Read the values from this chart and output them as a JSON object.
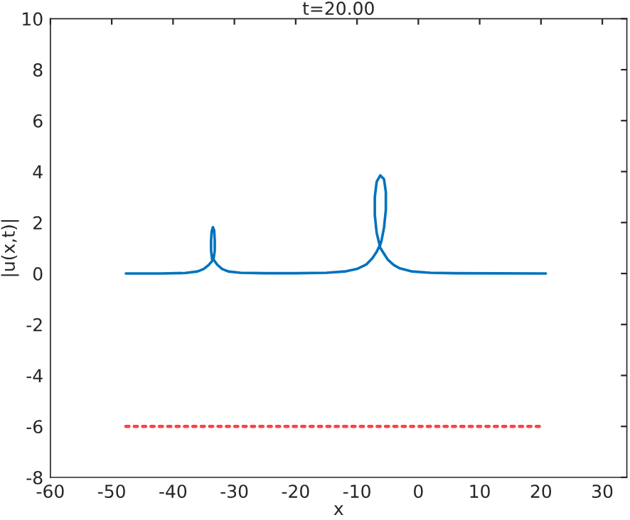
{
  "chart_data": {
    "type": "line",
    "title": "t=20.00",
    "xlabel": "x",
    "ylabel": "|u(x,t)|",
    "xlim": [
      -60,
      34
    ],
    "xticks": [
      -60,
      -50,
      -40,
      -30,
      -20,
      -10,
      0,
      10,
      20,
      30
    ],
    "ylim": [
      -8,
      10
    ],
    "yticks": [
      -8,
      -6,
      -4,
      -2,
      0,
      2,
      4,
      6,
      8,
      10
    ],
    "grid": false,
    "series": [
      {
        "color": "#0072bd",
        "line_style": "solid",
        "x": [
          -47.7,
          -42,
          -38,
          -36,
          -35,
          -34.2,
          -33.6,
          -33.8,
          -33.8,
          -33.7,
          -33.5,
          -33.3,
          -33.2,
          -33.2,
          -33.4,
          -32.8,
          -32,
          -31,
          -29,
          -25,
          -20,
          -15,
          -12,
          -10,
          -8.5,
          -7.5,
          -6.8,
          -6.3,
          -6.8,
          -7.1,
          -7.1,
          -6.8,
          -6.2,
          -5.6,
          -5.3,
          -5.3,
          -5.6,
          -6.0,
          -6.3,
          -5.8,
          -5,
          -4,
          -3,
          -1,
          2,
          6,
          20.8
        ],
        "values": [
          0,
          0,
          0.02,
          0.08,
          0.18,
          0.33,
          0.5,
          0.9,
          1.3,
          1.65,
          1.82,
          1.7,
          1.3,
          0.9,
          0.55,
          0.35,
          0.18,
          0.08,
          0.03,
          0.01,
          0.01,
          0.03,
          0.08,
          0.18,
          0.35,
          0.6,
          0.85,
          1.1,
          1.6,
          2.3,
          3.0,
          3.6,
          3.85,
          3.7,
          3.2,
          2.5,
          1.8,
          1.3,
          1.05,
          0.85,
          0.55,
          0.33,
          0.2,
          0.08,
          0.03,
          0.01,
          0
        ]
      },
      {
        "color": "#ff4040",
        "line_style": "dotted",
        "x": [
          -47.7,
          20.5
        ],
        "values": [
          -6,
          -6
        ]
      }
    ]
  }
}
